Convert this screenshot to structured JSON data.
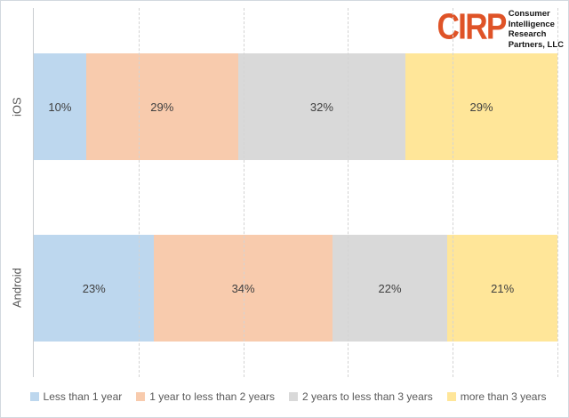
{
  "logo": {
    "brand": "CIRP",
    "brand_color": "#df5327",
    "org_lines": [
      "Consumer",
      "Intelligence",
      "Research",
      "Partners, LLC"
    ]
  },
  "chart_data": {
    "type": "bar",
    "orientation": "horizontal",
    "stacked": true,
    "title": "",
    "xlabel": "",
    "ylabel": "",
    "xlim": [
      0,
      100
    ],
    "grid": "dashed-vertical",
    "gridlines_percent": [
      20,
      40,
      60,
      80,
      100
    ],
    "legend_position": "bottom",
    "categories": [
      "iOS",
      "Android"
    ],
    "series": [
      {
        "name": "Less than 1 year",
        "color": "#BDD7EE",
        "values": [
          10,
          23
        ]
      },
      {
        "name": "1 year to less than 2 years",
        "color": "#F8CBAD",
        "values": [
          29,
          34
        ]
      },
      {
        "name": "2 years to less than 3 years",
        "color": "#D9D9D9",
        "values": [
          32,
          22
        ]
      },
      {
        "name": "more than 3 years",
        "color": "#FFE699",
        "values": [
          29,
          21
        ]
      }
    ],
    "data_labels": {
      "iOS": [
        "10%",
        "29%",
        "32%",
        "29%"
      ],
      "Android": [
        "23%",
        "34%",
        "22%",
        "21%"
      ]
    }
  }
}
